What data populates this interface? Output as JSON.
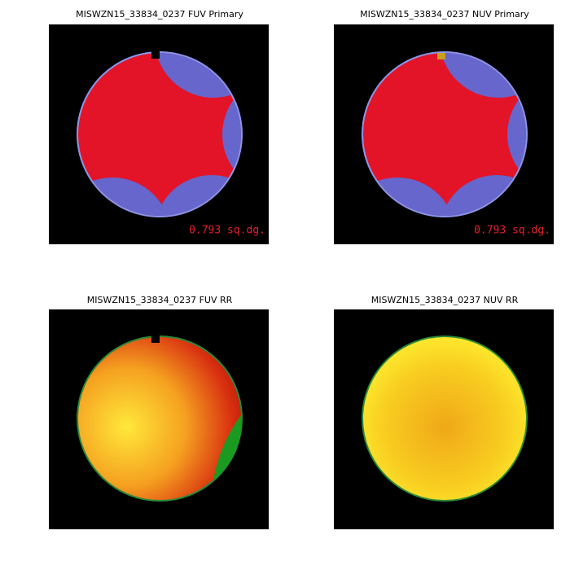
{
  "panels": [
    {
      "title": "MISWZN15_33834_0237 FUV Primary",
      "area": "0.793 sq.dg."
    },
    {
      "title": "MISWZN15_33834_0237 NUV Primary",
      "area": "0.793 sq.dg."
    },
    {
      "title": "MISWZN15_33834_0237 FUV RR"
    },
    {
      "title": "MISWZN15_33834_0237 NUV RR"
    }
  ]
}
